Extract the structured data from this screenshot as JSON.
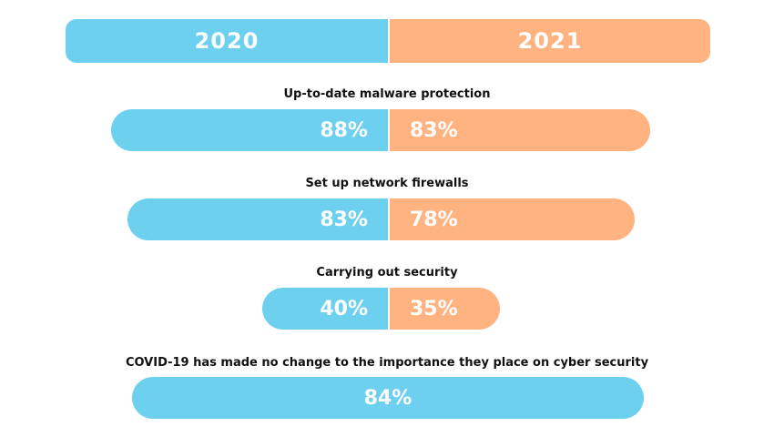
{
  "colors": {
    "y2020": "#6dd0ef",
    "y2021": "#ffb380"
  },
  "chart_data": {
    "type": "bar",
    "title": "",
    "series": [
      {
        "name": "2020",
        "color": "#6dd0ef"
      },
      {
        "name": "2021",
        "color": "#ffb380"
      }
    ],
    "rows": [
      {
        "label": "Up-to-date malware protection",
        "v2020": 88,
        "v2021": 83,
        "v2020_label": "88%",
        "v2021_label": "83%"
      },
      {
        "label": "Set up network firewalls",
        "v2020": 83,
        "v2021": 78,
        "v2020_label": "83%",
        "v2021_label": "78%"
      },
      {
        "label": "Carrying out security",
        "v2020": 40,
        "v2021": 35,
        "v2020_label": "40%",
        "v2021_label": "35%"
      }
    ],
    "summary": {
      "label": "COVID-19 has made no change to the importance they place on cyber security",
      "value": 84,
      "value_label": "84%"
    }
  }
}
